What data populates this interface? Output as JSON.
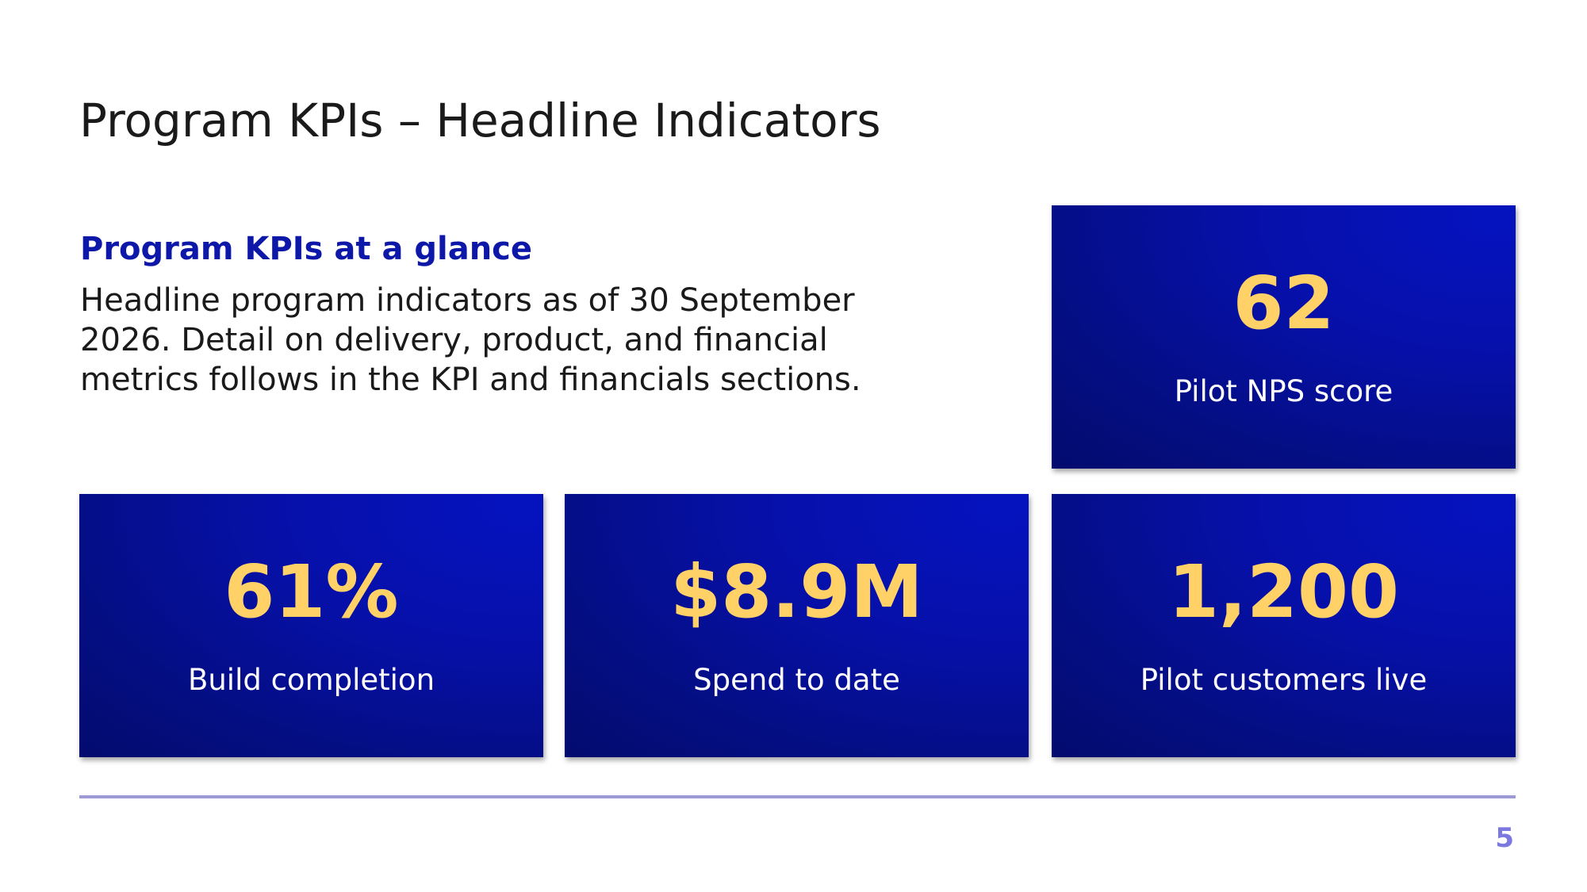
{
  "slide": {
    "title": "Program KPIs – Headline Indicators",
    "intro": {
      "heading": "Program KPIs at a glance",
      "body": "Headline program indicators as of 30 September\n2026. Detail on delivery, product, and financial\nmetrics follows in the KPI and financials sections."
    },
    "kpis": [
      {
        "value": "62",
        "label": "Pilot NPS score"
      },
      {
        "value": "61%",
        "label": "Build completion"
      },
      {
        "value": "$8.9M",
        "label": "Spend to date"
      },
      {
        "value": "1,200",
        "label": "Pilot customers live"
      }
    ],
    "page_number": "5"
  },
  "colors": {
    "card_background": "#0610a8",
    "kpi_value": "#ffd166",
    "kpi_label": "#ffffff",
    "heading_accent": "#0d18a8",
    "footer_rule": "#9d9ad6",
    "page_number": "#7b78e0"
  }
}
